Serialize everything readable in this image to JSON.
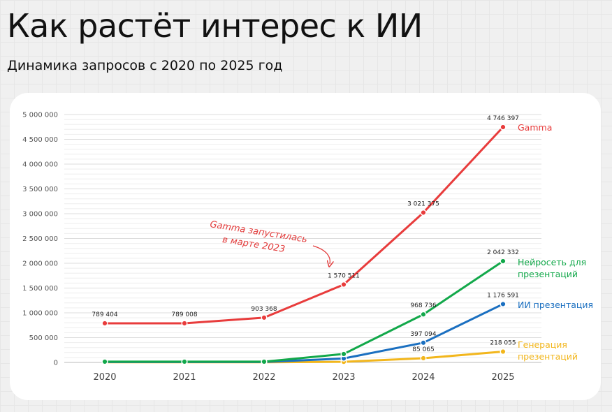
{
  "header": {
    "title": "Как растёт интерес к ИИ",
    "subtitle": "Динамика запросов с 2020 по 2025 год"
  },
  "chart_data": {
    "type": "line",
    "title": "Как растёт интерес к ИИ",
    "subtitle": "Динамика запросов с 2020 по 2025 год",
    "xlabel": "",
    "ylabel": "",
    "categories": [
      "2020",
      "2021",
      "2022",
      "2023",
      "2024",
      "2025"
    ],
    "ylim": [
      0,
      5000000
    ],
    "yticks": [
      0,
      500000,
      1000000,
      1500000,
      2000000,
      2500000,
      3000000,
      3500000,
      4000000,
      4500000,
      5000000
    ],
    "ytick_labels": [
      "0",
      "500 000",
      "1 000 000",
      "1 500 000",
      "2 000 000",
      "2 500 000",
      "3 000 000",
      "3 500 000",
      "4 000 000",
      "4 500 000",
      "5 000 000"
    ],
    "grid": true,
    "legend": "series names at line ends (right)",
    "series": [
      {
        "name": "Gamma",
        "name_lines": [
          "Gamma"
        ],
        "color": "#e83c3c",
        "values": [
          789404,
          789008,
          903368,
          1570511,
          3021375,
          4746397
        ],
        "labels": [
          "789 404",
          "789 008",
          "903 368",
          "1 570 511",
          "3 021 375",
          "4 746 397"
        ]
      },
      {
        "name": "Нейросеть для презентаций",
        "name_lines": [
          "Нейросеть для",
          "презентаций"
        ],
        "color": "#12a84a",
        "values": [
          15000,
          15000,
          15000,
          170000,
          968736,
          2042332
        ],
        "labels": [
          "",
          "",
          "",
          "",
          "968 736",
          "2 042 332"
        ]
      },
      {
        "name": "ИИ презентация",
        "name_lines": [
          "ИИ презентация"
        ],
        "color": "#1a6fc0",
        "values": [
          8000,
          8000,
          8000,
          80000,
          397094,
          1176591
        ],
        "labels": [
          "",
          "",
          "",
          "",
          "397 094",
          "1 176 591"
        ]
      },
      {
        "name": "Генерация презентаций",
        "name_lines": [
          "Генерация",
          "презентаций"
        ],
        "color": "#f2b61c",
        "values": [
          4000,
          4000,
          4000,
          12000,
          85065,
          218055
        ],
        "labels": [
          "",
          "",
          "",
          "",
          "85 065",
          "218 055"
        ]
      }
    ],
    "annotations": [
      {
        "text_lines": [
          "Gamma запустилась",
          "в марте 2023"
        ],
        "color": "#e23b3b"
      }
    ]
  }
}
